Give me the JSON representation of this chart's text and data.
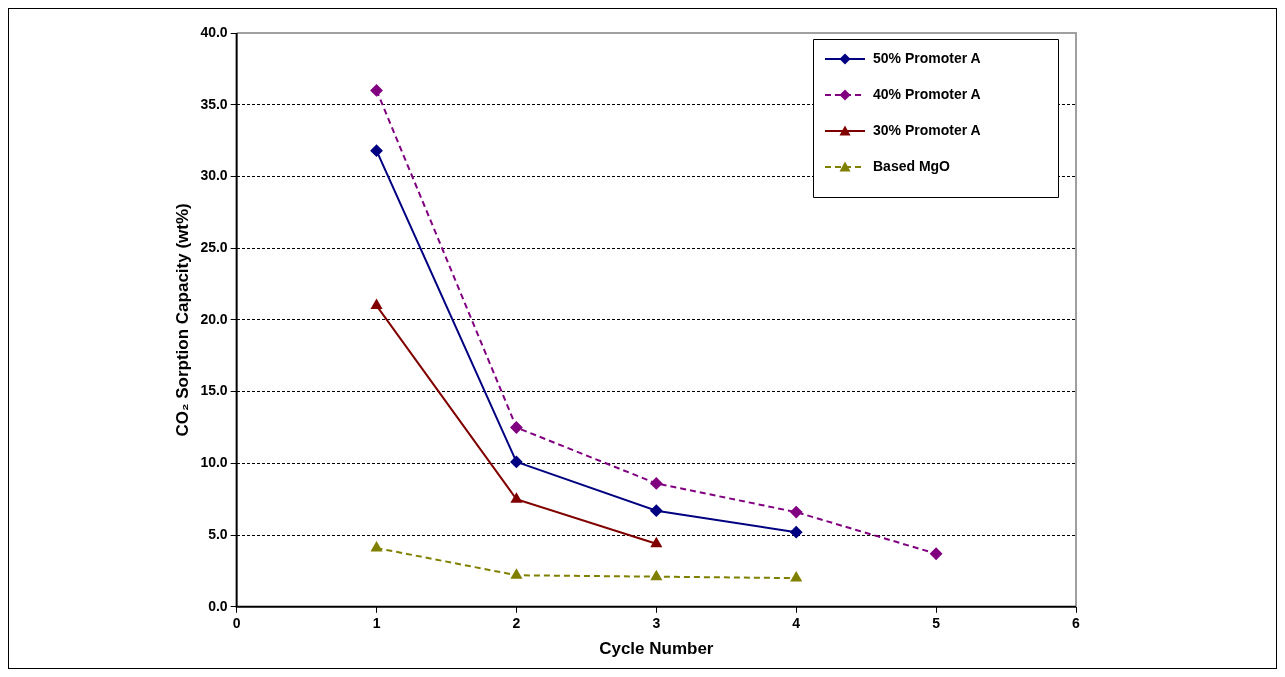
{
  "chart_data": {
    "type": "line",
    "xlabel": "Cycle Number",
    "ylabel": "CO₂ Sorption Capacity (wt%)",
    "xlim": [
      0,
      6
    ],
    "xticks": [
      0,
      1,
      2,
      3,
      4,
      5,
      6
    ],
    "ylim": [
      0,
      40
    ],
    "yticks": [
      {
        "value": 0,
        "label": "0.0"
      },
      {
        "value": 5,
        "label": "5.0"
      },
      {
        "value": 10,
        "label": "10.0"
      },
      {
        "value": 15,
        "label": "15.0"
      },
      {
        "value": 20,
        "label": "20.0"
      },
      {
        "value": 25,
        "label": "25.0"
      },
      {
        "value": 30,
        "label": "30.0"
      },
      {
        "value": 35,
        "label": "35.0"
      },
      {
        "value": 40,
        "label": "40.0"
      }
    ],
    "grid": "y",
    "legend": "top right",
    "series": [
      {
        "name": "50% Promoter A",
        "color": "#000080",
        "marker": "diamond",
        "line_style": "solid",
        "x": [
          1,
          2,
          3,
          4
        ],
        "values": [
          31.8,
          10.1,
          6.7,
          5.2
        ]
      },
      {
        "name": "40% Promoter A",
        "color": "#800080",
        "marker": "diamond",
        "line_style": "dashed",
        "x": [
          1,
          2,
          3,
          4,
          5
        ],
        "values": [
          36.0,
          12.5,
          8.6,
          6.6,
          3.7
        ]
      },
      {
        "name": "30% Promoter A",
        "color": "#800000",
        "marker": "triangle",
        "line_style": "solid",
        "x": [
          1,
          2,
          3
        ],
        "values": [
          21.0,
          7.5,
          4.4
        ]
      },
      {
        "name": "Based MgO",
        "color": "#808000",
        "marker": "triangle",
        "line_style": "dashed",
        "x": [
          1,
          2,
          3,
          4
        ],
        "values": [
          4.1,
          2.2,
          2.1,
          2.0
        ]
      }
    ]
  }
}
